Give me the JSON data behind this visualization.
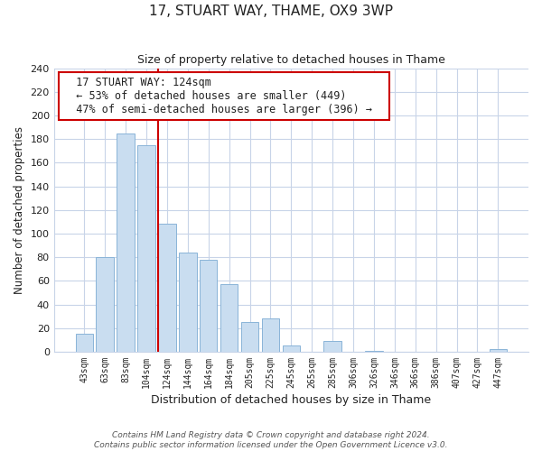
{
  "title": "17, STUART WAY, THAME, OX9 3WP",
  "subtitle": "Size of property relative to detached houses in Thame",
  "xlabel": "Distribution of detached houses by size in Thame",
  "ylabel": "Number of detached properties",
  "bar_labels": [
    "43sqm",
    "63sqm",
    "83sqm",
    "104sqm",
    "124sqm",
    "144sqm",
    "164sqm",
    "184sqm",
    "205sqm",
    "225sqm",
    "245sqm",
    "265sqm",
    "285sqm",
    "306sqm",
    "326sqm",
    "346sqm",
    "366sqm",
    "386sqm",
    "407sqm",
    "427sqm",
    "447sqm"
  ],
  "bar_values": [
    15,
    80,
    185,
    175,
    108,
    84,
    78,
    57,
    25,
    28,
    5,
    0,
    9,
    0,
    1,
    0,
    0,
    0,
    0,
    0,
    2
  ],
  "bar_color": "#c9ddf0",
  "bar_edge_color": "#8ab4d8",
  "vline_index": 4,
  "vline_color": "#cc0000",
  "annotation_title": "17 STUART WAY: 124sqm",
  "annotation_line1": "← 53% of detached houses are smaller (449)",
  "annotation_line2": "47% of semi-detached houses are larger (396) →",
  "annotation_box_color": "#ffffff",
  "annotation_box_edge": "#cc0000",
  "ylim": [
    0,
    240
  ],
  "yticks": [
    0,
    20,
    40,
    60,
    80,
    100,
    120,
    140,
    160,
    180,
    200,
    220,
    240
  ],
  "footer1": "Contains HM Land Registry data © Crown copyright and database right 2024.",
  "footer2": "Contains public sector information licensed under the Open Government Licence v3.0.",
  "bg_color": "#ffffff",
  "grid_color": "#c8d4e8"
}
